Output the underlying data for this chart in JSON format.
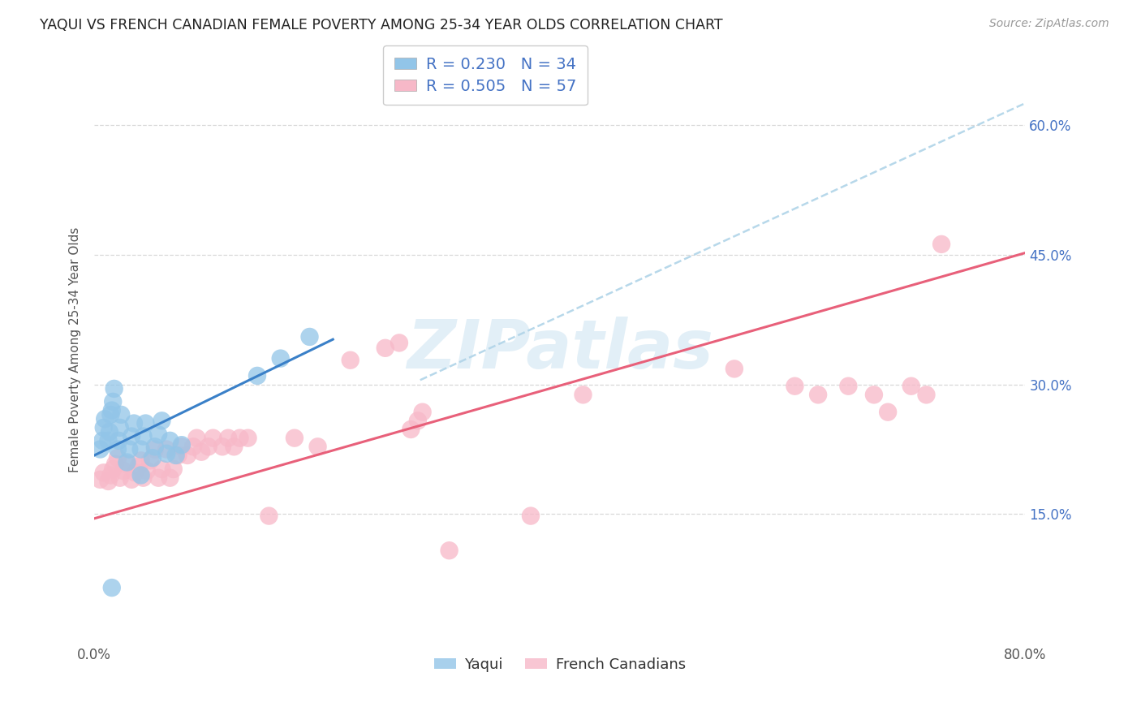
{
  "title": "YAQUI VS FRENCH CANADIAN FEMALE POVERTY AMONG 25-34 YEAR OLDS CORRELATION CHART",
  "source": "Source: ZipAtlas.com",
  "ylabel": "Female Poverty Among 25-34 Year Olds",
  "xmin": 0.0,
  "xmax": 0.8,
  "ymin": 0.0,
  "ymax": 0.68,
  "xticks": [
    0.0,
    0.1,
    0.2,
    0.3,
    0.4,
    0.5,
    0.6,
    0.7,
    0.8
  ],
  "yticks": [
    0.15,
    0.3,
    0.45,
    0.6
  ],
  "ytick_labels": [
    "15.0%",
    "30.0%",
    "45.0%",
    "60.0%"
  ],
  "xtick_labels_show": [
    "0.0%",
    "80.0%"
  ],
  "background_color": "#ffffff",
  "grid_color": "#d8d8d8",
  "watermark": "ZIPatlas",
  "yaqui_color": "#92c5e8",
  "french_color": "#f7b8c8",
  "yaqui_line_color": "#3a80c8",
  "french_line_color": "#e8607a",
  "dashed_line_color": "#b0d4e8",
  "yaqui_points_x": [
    0.005,
    0.007,
    0.008,
    0.009,
    0.012,
    0.013,
    0.014,
    0.015,
    0.016,
    0.017,
    0.02,
    0.021,
    0.022,
    0.023,
    0.028,
    0.03,
    0.032,
    0.034,
    0.04,
    0.042,
    0.044,
    0.05,
    0.052,
    0.055,
    0.058,
    0.062,
    0.065,
    0.07,
    0.075,
    0.14,
    0.16,
    0.185,
    0.015,
    0.04
  ],
  "yaqui_points_y": [
    0.225,
    0.235,
    0.25,
    0.26,
    0.235,
    0.245,
    0.265,
    0.27,
    0.28,
    0.295,
    0.225,
    0.235,
    0.25,
    0.265,
    0.21,
    0.225,
    0.24,
    0.255,
    0.225,
    0.24,
    0.255,
    0.215,
    0.228,
    0.242,
    0.258,
    0.22,
    0.235,
    0.218,
    0.23,
    0.31,
    0.33,
    0.355,
    0.065,
    0.195
  ],
  "french_points_x": [
    0.005,
    0.008,
    0.012,
    0.014,
    0.016,
    0.018,
    0.02,
    0.022,
    0.025,
    0.028,
    0.032,
    0.035,
    0.038,
    0.04,
    0.042,
    0.045,
    0.048,
    0.052,
    0.055,
    0.058,
    0.062,
    0.065,
    0.068,
    0.072,
    0.075,
    0.08,
    0.085,
    0.088,
    0.092,
    0.098,
    0.102,
    0.11,
    0.115,
    0.12,
    0.125,
    0.132,
    0.15,
    0.172,
    0.192,
    0.22,
    0.25,
    0.262,
    0.272,
    0.278,
    0.282,
    0.305,
    0.375,
    0.42,
    0.55,
    0.602,
    0.622,
    0.648,
    0.67,
    0.682,
    0.702,
    0.715,
    0.728
  ],
  "french_points_y": [
    0.19,
    0.198,
    0.188,
    0.195,
    0.202,
    0.208,
    0.215,
    0.192,
    0.2,
    0.208,
    0.19,
    0.198,
    0.205,
    0.212,
    0.192,
    0.2,
    0.212,
    0.225,
    0.192,
    0.202,
    0.225,
    0.192,
    0.202,
    0.218,
    0.228,
    0.218,
    0.228,
    0.238,
    0.222,
    0.228,
    0.238,
    0.228,
    0.238,
    0.228,
    0.238,
    0.238,
    0.148,
    0.238,
    0.228,
    0.328,
    0.342,
    0.348,
    0.248,
    0.258,
    0.268,
    0.108,
    0.148,
    0.288,
    0.318,
    0.298,
    0.288,
    0.298,
    0.288,
    0.268,
    0.298,
    0.288,
    0.462
  ],
  "yaqui_trendline": {
    "x_start": 0.0,
    "y_start": 0.218,
    "x_end": 0.205,
    "y_end": 0.352
  },
  "french_trendline": {
    "x_start": 0.0,
    "y_start": 0.145,
    "x_end": 0.8,
    "y_end": 0.452
  },
  "dashed_trendline": {
    "x_start": 0.28,
    "y_start": 0.305,
    "x_end": 0.8,
    "y_end": 0.625
  }
}
